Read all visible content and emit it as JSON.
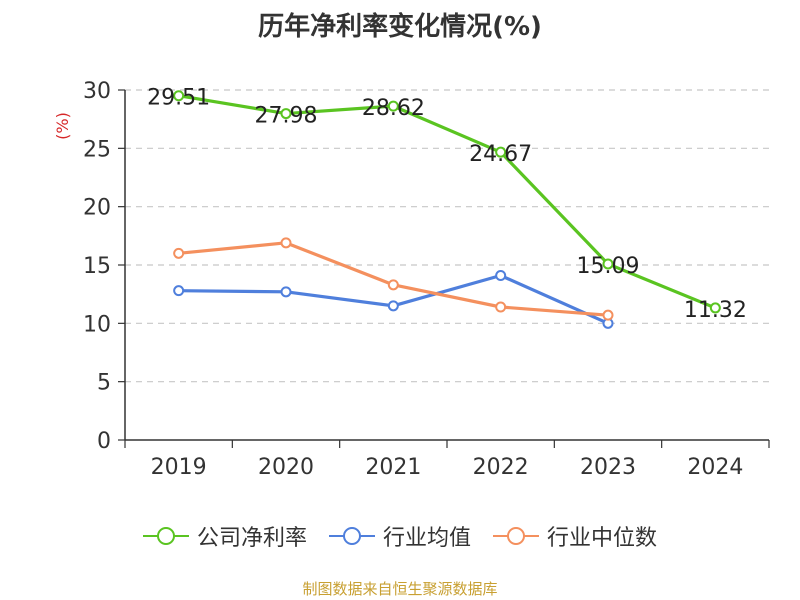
{
  "title": "历年净利率变化情况(%)",
  "source": "制图数据来自恒生聚源数据库",
  "chart_data": {
    "type": "line",
    "title": "历年净利率变化情况(%)",
    "ylabel": "(%)",
    "xlabel": "",
    "categories": [
      "2019",
      "2020",
      "2021",
      "2022",
      "2023",
      "2024"
    ],
    "ylim": [
      0,
      30
    ],
    "yticks": [
      "0",
      "5",
      "10",
      "15",
      "20",
      "25",
      "30"
    ],
    "grid": "horizontal-dashed",
    "legend_position": "bottom",
    "series": [
      {
        "name": "公司净利率",
        "color": "#5ac421",
        "values": [
          29.51,
          27.98,
          28.62,
          24.67,
          15.09,
          11.32
        ],
        "labels": [
          "29.51",
          "27.98",
          "28.62",
          "24.67",
          "15.09",
          "11.32"
        ]
      },
      {
        "name": "行业均值",
        "color": "#4f7fdc",
        "values": [
          12.8,
          12.7,
          11.5,
          14.1,
          10.0,
          null
        ]
      },
      {
        "name": "行业中位数",
        "color": "#f4905e",
        "values": [
          16.0,
          16.9,
          13.3,
          11.4,
          10.7,
          null
        ]
      }
    ]
  }
}
